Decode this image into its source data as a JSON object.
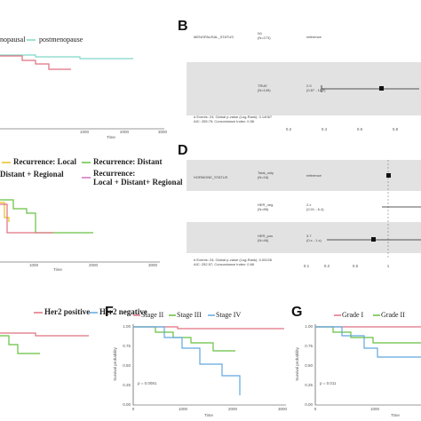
{
  "panels": [
    {
      "legend": [
        "nopausal",
        "postmenopause"
      ],
      "xticks": [
        "1000",
        "2000",
        "3000"
      ],
      "xlabel": "Time"
    },
    {
      "label": "B",
      "variable": "MENOPAUSAL_STATUS",
      "rows": [
        {
          "group": "N1",
          "n": "(N=273)",
          "estimate": "reference"
        },
        {
          "group": "TRUE",
          "n": "(N=149)",
          "estimate": "2.9",
          "ci": "(0.87 - 11.2)"
        }
      ],
      "footnote": [
        "# Events: 24; Global p-value (Log-Rank): 0.14067",
        "AIC: 255.75; Concordance Index: 0.56"
      ],
      "xticks": [
        "0.2",
        "0.4",
        "0.6",
        "0.8"
      ]
    },
    {
      "legend": [
        "Recurrence: Local",
        "Recurrence: Distant",
        "Distant + Regional",
        "Recurrence:",
        "Local + Distant+ Regional"
      ],
      "xticks": [
        "1000",
        "2000",
        "3000"
      ],
      "xlabel": "Time"
    },
    {
      "label": "D",
      "variable": "HORMONE_STATUS",
      "rows": [
        {
          "group": "Total_only",
          "n": "(N=16)",
          "estimate": "reference"
        },
        {
          "group": "HER_neg",
          "n": "(N=85)",
          "estimate": "2.x",
          "ci": "(0.01 - 6.4)"
        },
        {
          "group": "HER_pos",
          "n": "(N=46)",
          "estimate": "3.7",
          "ci": "(0.x - 1.x)"
        }
      ],
      "footnote": [
        "# Events: 24; Global p-value (Log-Rank): 0.00226",
        "AIC: 252.57; Concordance Index: 0.66"
      ],
      "xticks": [
        "0.1",
        "0.2",
        "0.5",
        "1"
      ]
    },
    {
      "legend": [
        "Her2 positive",
        "Her2 negative"
      ]
    },
    {
      "label": "F",
      "legend": [
        "Stage II",
        "Stage III",
        "Stage IV"
      ],
      "yticks": [
        "1.00",
        "0.75",
        "0.50",
        "0.25",
        "0.00"
      ],
      "ylabel": "Survival probability",
      "pvalue": "p = 0.0081",
      "xticks": [
        "0",
        "1000",
        "2000",
        "3000"
      ],
      "xlabel": "Time"
    },
    {
      "label": "G",
      "legend": [
        "Grade I",
        "Grade II"
      ],
      "yticks": [
        "1.00",
        "0.75",
        "0.50",
        "0.25",
        "0.00"
      ],
      "ylabel": "Survival probability",
      "pvalue": "p = 0.011",
      "xticks": [
        "0",
        "1000"
      ],
      "xlabel": "Time"
    }
  ]
}
